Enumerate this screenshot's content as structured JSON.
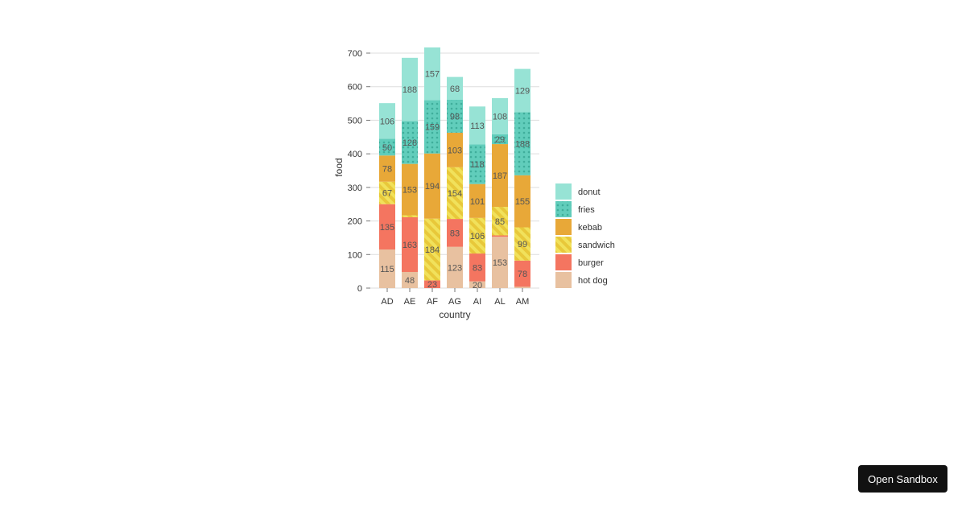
{
  "chart_data": {
    "type": "bar",
    "stacked": true,
    "xlabel": "country",
    "ylabel": "food",
    "ylim": [
      0,
      700
    ],
    "yticks": [
      0,
      100,
      200,
      300,
      400,
      500,
      600,
      700
    ],
    "grid": true,
    "legend_position": "right",
    "categories": [
      "AD",
      "AE",
      "AF",
      "AG",
      "AI",
      "AL",
      "AM"
    ],
    "series": [
      {
        "name": "hot dog",
        "color": "#e8c1a0",
        "pattern": "none",
        "values": [
          115,
          48,
          0,
          123,
          20,
          153,
          4
        ]
      },
      {
        "name": "burger",
        "color": "#f47560",
        "pattern": "none",
        "values": [
          135,
          163,
          23,
          83,
          83,
          4,
          78
        ]
      },
      {
        "name": "sandwich",
        "color": "#f1e15b",
        "pattern": "stripes",
        "values": [
          67,
          6,
          184,
          154,
          106,
          85,
          99
        ]
      },
      {
        "name": "kebab",
        "color": "#e8a838",
        "pattern": "none",
        "values": [
          78,
          153,
          194,
          103,
          101,
          187,
          155
        ]
      },
      {
        "name": "fries",
        "color": "#61cdbb",
        "pattern": "dots",
        "values": [
          50,
          128,
          159,
          98,
          118,
          29,
          188
        ]
      },
      {
        "name": "donut",
        "color": "#97e3d5",
        "pattern": "none",
        "values": [
          106,
          188,
          157,
          68,
          113,
          108,
          129
        ]
      }
    ],
    "label_min": 20
  },
  "toolbar": {
    "open_sandbox_label": "Open Sandbox"
  }
}
